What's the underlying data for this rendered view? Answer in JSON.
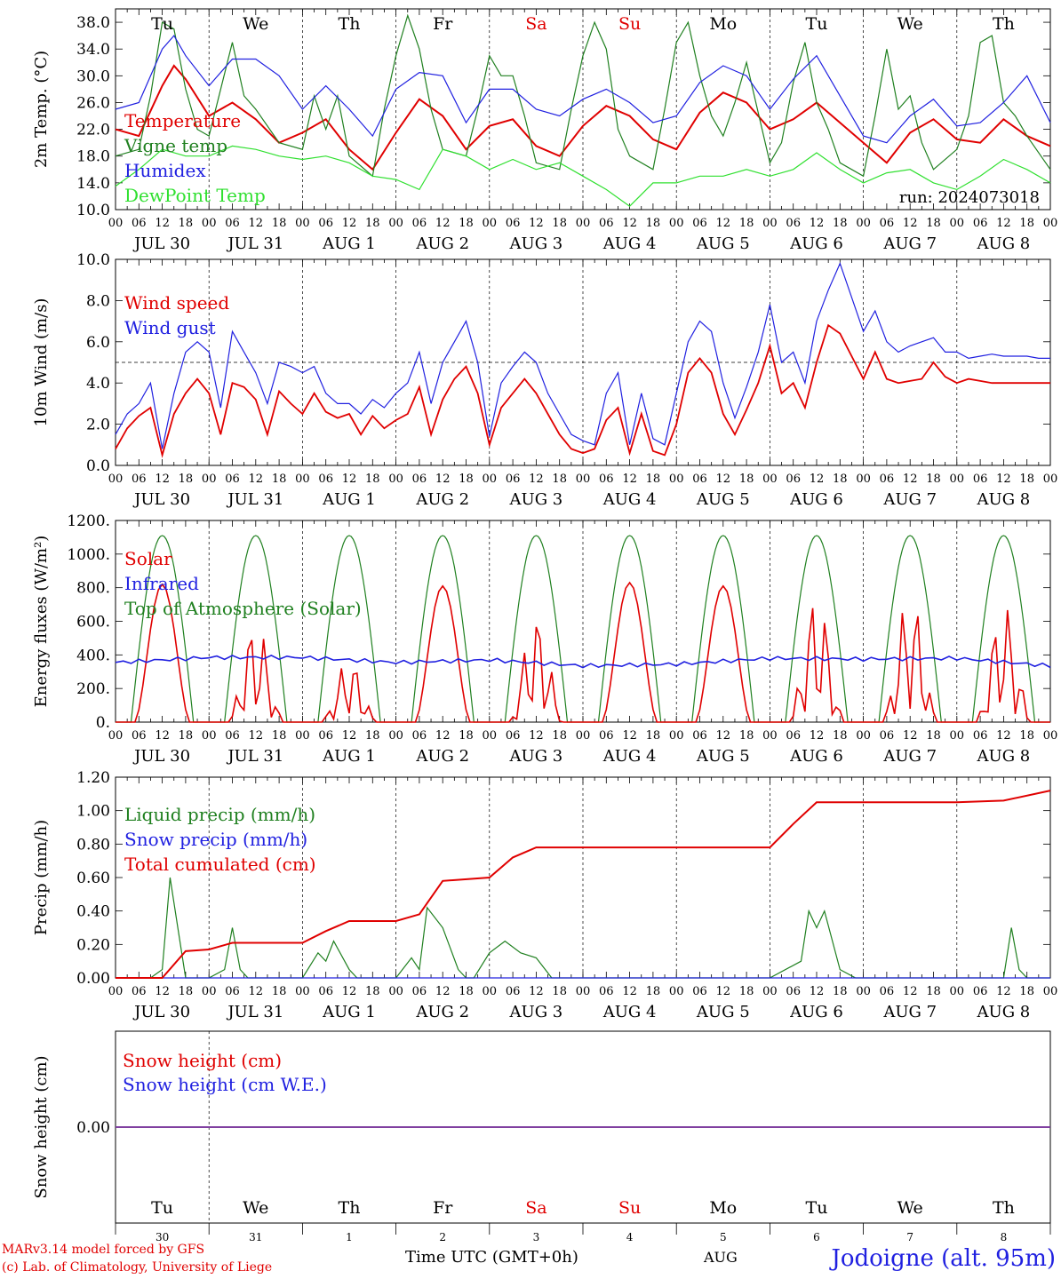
{
  "chart_data": [
    {
      "type": "line",
      "ylabel": "2m Temp. (°C)",
      "ylim": [
        10,
        40
      ],
      "yticks": [
        "10.0",
        "14.0",
        "18.0",
        "22.0",
        "26.0",
        "30.0",
        "34.0",
        "38.0"
      ],
      "run_label": "run: 2024073018",
      "series": [
        {
          "name": "Temperature",
          "color": "#e00000",
          "x": [
            0,
            6,
            12,
            15,
            18,
            24,
            30,
            36,
            42,
            48,
            54,
            60,
            66,
            72,
            78,
            84,
            90,
            96,
            102,
            108,
            114,
            120,
            126,
            132,
            138,
            144,
            150,
            156,
            162,
            168,
            174,
            180,
            186,
            192,
            198,
            204,
            210,
            216,
            222,
            228,
            234,
            240
          ],
          "values": [
            22,
            21,
            28.5,
            31.5,
            29.5,
            24,
            26,
            23.5,
            20,
            21.5,
            23.5,
            19,
            16,
            21.5,
            26.5,
            24,
            19,
            22.5,
            23.5,
            19.5,
            18,
            22.5,
            25.5,
            24,
            20.5,
            19,
            24.5,
            27.5,
            26,
            22,
            23.5,
            26,
            23,
            20,
            17,
            21.5,
            23.5,
            20.5,
            20,
            23.5,
            21,
            19.5
          ]
        },
        {
          "name": "Vigne temp",
          "color": "#208020",
          "x": [
            0,
            6,
            9,
            12,
            15,
            18,
            21,
            24,
            30,
            33,
            36,
            42,
            48,
            51,
            54,
            57,
            60,
            66,
            69,
            72,
            75,
            78,
            81,
            84,
            90,
            93,
            96,
            99,
            102,
            105,
            108,
            114,
            117,
            120,
            123,
            126,
            129,
            132,
            138,
            141,
            144,
            147,
            150,
            153,
            156,
            159,
            162,
            168,
            171,
            174,
            177,
            180,
            183,
            186,
            192,
            195,
            198,
            201,
            204,
            207,
            210,
            216,
            219,
            222,
            225,
            228,
            231,
            234,
            240
          ],
          "values": [
            18,
            19,
            27,
            38,
            37,
            28,
            22,
            21,
            35,
            27,
            25,
            20,
            19,
            27,
            22,
            27,
            18,
            15,
            25,
            33,
            39,
            34,
            25,
            19,
            18,
            25,
            33,
            30,
            30,
            24,
            17,
            16,
            25,
            33,
            38,
            34,
            22,
            18,
            16,
            25,
            35,
            38,
            30,
            24,
            21,
            26,
            32,
            17,
            20,
            29,
            35,
            26,
            22,
            17,
            15,
            24,
            34,
            25,
            27,
            20,
            16,
            19,
            24,
            35,
            36,
            26,
            24,
            21,
            16
          ]
        },
        {
          "name": "Humidex",
          "color": "#2020e0",
          "x": [
            0,
            6,
            12,
            15,
            18,
            24,
            30,
            36,
            42,
            48,
            54,
            60,
            66,
            72,
            78,
            84,
            90,
            96,
            102,
            108,
            114,
            120,
            126,
            132,
            138,
            144,
            150,
            156,
            162,
            168,
            174,
            180,
            186,
            192,
            198,
            204,
            210,
            216,
            222,
            228,
            234,
            240
          ],
          "values": [
            25,
            26,
            34,
            36,
            33,
            28.5,
            32.5,
            32.5,
            30,
            25,
            28.5,
            25,
            21,
            28,
            30.5,
            30,
            23,
            28,
            28,
            25,
            24,
            26.5,
            28,
            26,
            23,
            24,
            29,
            31.5,
            30,
            25,
            29.5,
            33,
            27,
            21,
            20,
            24,
            26.5,
            22.5,
            23,
            26,
            30,
            23
          ]
        },
        {
          "name": "DewPoint Temp",
          "color": "#30e030",
          "x": [
            0,
            6,
            12,
            18,
            24,
            30,
            36,
            42,
            48,
            54,
            60,
            66,
            72,
            78,
            84,
            90,
            96,
            102,
            108,
            114,
            120,
            126,
            132,
            138,
            144,
            150,
            156,
            162,
            168,
            174,
            180,
            186,
            192,
            198,
            204,
            210,
            216,
            222,
            228,
            234,
            240
          ],
          "values": [
            13.5,
            16,
            19,
            18,
            18,
            19.5,
            19,
            18,
            17.5,
            18,
            17,
            15,
            14.5,
            13,
            19,
            18,
            16,
            17.5,
            16,
            17,
            15,
            13,
            10.5,
            14,
            14,
            15,
            15,
            16,
            15,
            16,
            18.5,
            16,
            14,
            15.5,
            16,
            14,
            13,
            15,
            17.5,
            16,
            14
          ]
        }
      ]
    },
    {
      "type": "line",
      "ylabel": "10m Wind (m/s)",
      "ylim": [
        0,
        10
      ],
      "yticks": [
        "0.0",
        "2.0",
        "4.0",
        "6.0",
        "8.0",
        "10.0"
      ],
      "reference_line": 5,
      "series": [
        {
          "name": "Wind speed",
          "color": "#e00000",
          "x": [
            0,
            3,
            6,
            9,
            12,
            15,
            18,
            21,
            24,
            27,
            30,
            33,
            36,
            39,
            42,
            45,
            48,
            51,
            54,
            57,
            60,
            63,
            66,
            69,
            72,
            75,
            78,
            81,
            84,
            87,
            90,
            93,
            96,
            99,
            102,
            105,
            108,
            111,
            114,
            117,
            120,
            123,
            126,
            129,
            132,
            135,
            138,
            141,
            144,
            147,
            150,
            153,
            156,
            159,
            162,
            165,
            168,
            171,
            174,
            177,
            180,
            183,
            186,
            192,
            195,
            198,
            201,
            204,
            207,
            210,
            213,
            216,
            219,
            222,
            225,
            228,
            231,
            234,
            237,
            240
          ],
          "values": [
            0.8,
            1.8,
            2.4,
            2.8,
            0.5,
            2.5,
            3.5,
            4.2,
            3.5,
            1.5,
            4,
            3.8,
            3.2,
            1.5,
            3.6,
            3,
            2.5,
            3.5,
            2.6,
            2.3,
            2.5,
            1.5,
            2.4,
            1.8,
            2.2,
            2.5,
            3.8,
            1.5,
            3.2,
            4.2,
            4.8,
            3.5,
            1,
            2.8,
            3.5,
            4.2,
            3.5,
            2.5,
            1.5,
            0.8,
            0.6,
            0.8,
            2.2,
            2.8,
            0.6,
            2.5,
            0.7,
            0.5,
            2,
            4.5,
            5.2,
            4.5,
            2.5,
            1.5,
            2.7,
            4,
            5.8,
            3.5,
            4,
            2.8,
            5,
            6.8,
            6.4,
            4.2,
            5.5,
            4.2,
            4,
            4.1,
            4.2,
            5,
            4.3,
            4,
            4.2,
            4.1,
            4,
            4,
            4,
            4,
            4,
            4
          ]
        },
        {
          "name": "Wind gust",
          "color": "#2020e0",
          "x": [
            0,
            3,
            6,
            9,
            12,
            15,
            18,
            21,
            24,
            27,
            30,
            33,
            36,
            39,
            42,
            45,
            48,
            51,
            54,
            57,
            60,
            63,
            66,
            69,
            72,
            75,
            78,
            81,
            84,
            87,
            90,
            93,
            96,
            99,
            102,
            105,
            108,
            111,
            114,
            117,
            120,
            123,
            126,
            129,
            132,
            135,
            138,
            141,
            144,
            147,
            150,
            153,
            156,
            159,
            162,
            165,
            168,
            171,
            174,
            177,
            180,
            183,
            186,
            192,
            195,
            198,
            201,
            204,
            207,
            210,
            213,
            216,
            219,
            222,
            225,
            228,
            231,
            234,
            237,
            240
          ],
          "values": [
            1.5,
            2.5,
            3,
            4,
            0.8,
            3.5,
            5.5,
            6,
            5.5,
            2.8,
            6.5,
            5.5,
            4.5,
            3,
            5,
            4.8,
            4.5,
            4.8,
            3.5,
            3,
            3,
            2.5,
            3.2,
            2.8,
            3.5,
            4,
            5.5,
            3,
            5,
            6,
            7,
            5,
            1.4,
            4,
            4.8,
            5.5,
            5,
            3.5,
            2.5,
            1.5,
            1.2,
            1,
            3.5,
            4.5,
            1,
            3.5,
            1.3,
            1,
            3.5,
            6,
            7,
            6.5,
            4,
            2.3,
            3.8,
            5.5,
            7.8,
            5,
            5.5,
            4,
            7,
            8.5,
            9.8,
            6.5,
            7.5,
            6,
            5.5,
            5.8,
            6,
            6.2,
            5.5,
            5.5,
            5.2,
            5.3,
            5.4,
            5.3,
            5.3,
            5.3,
            5.2,
            5.2
          ]
        }
      ]
    },
    {
      "type": "line",
      "ylabel": "Energy fluxes (W/m²)",
      "ylim": [
        0,
        1200
      ],
      "yticks": [
        "0.",
        "200.",
        "400.",
        "600.",
        "800.",
        "1000.",
        "1200."
      ],
      "series": [
        {
          "name": "Solar",
          "color": "#e00000",
          "peaks": [
            820,
            600,
            380,
            810,
            640,
            830,
            810,
            760,
            770,
            710
          ],
          "peak_hour": 13
        },
        {
          "name": "Infrared",
          "color": "#2020e0",
          "x": [
            0,
            24,
            48,
            72,
            96,
            120,
            144,
            168,
            192,
            216,
            240
          ],
          "values": [
            355,
            385,
            385,
            355,
            370,
            335,
            345,
            380,
            375,
            380,
            335
          ]
        },
        {
          "name": "Top of Atmosphere (Solar)",
          "color": "#208020",
          "peak": 1110,
          "sunrise": 4,
          "sunset": 20
        }
      ]
    },
    {
      "type": "line",
      "ylabel": "Precip (mm/h)",
      "ylim": [
        0,
        1.2
      ],
      "yticks": [
        "0.00",
        "0.20",
        "0.40",
        "0.60",
        "0.80",
        "1.00",
        "1.20"
      ],
      "series": [
        {
          "name": "Liquid precip (mm/h)",
          "color": "#208020",
          "x": [
            0,
            9,
            12,
            14,
            16,
            18,
            24,
            28,
            30,
            32,
            34,
            48,
            52,
            54,
            56,
            60,
            62,
            72,
            76,
            78,
            80,
            84,
            88,
            90,
            92,
            96,
            100,
            104,
            108,
            112,
            120,
            168,
            176,
            178,
            180,
            182,
            186,
            190,
            228,
            230,
            232,
            234,
            240
          ],
          "values": [
            0,
            0,
            0.05,
            0.6,
            0.3,
            0,
            0,
            0.05,
            0.3,
            0.05,
            0,
            0,
            0.15,
            0.1,
            0.22,
            0.05,
            0,
            0,
            0.12,
            0.05,
            0.42,
            0.3,
            0.05,
            0,
            0,
            0.15,
            0.22,
            0.15,
            0.12,
            0,
            0,
            0,
            0.1,
            0.4,
            0.3,
            0.4,
            0.05,
            0,
            0,
            0.3,
            0.05,
            0,
            0
          ]
        },
        {
          "name": "Snow precip (mm/h)",
          "color": "#2020e0",
          "x": [
            0,
            240
          ],
          "values": [
            0,
            0
          ]
        },
        {
          "name": "Total cumulated (cm)",
          "color": "#e00000",
          "x": [
            0,
            12,
            18,
            24,
            30,
            48,
            54,
            60,
            72,
            78,
            84,
            96,
            102,
            108,
            168,
            174,
            180,
            216,
            228,
            240
          ],
          "values": [
            0,
            0,
            0.16,
            0.17,
            0.21,
            0.21,
            0.28,
            0.34,
            0.34,
            0.38,
            0.58,
            0.6,
            0.72,
            0.78,
            0.78,
            0.92,
            1.05,
            1.05,
            1.06,
            1.12
          ]
        }
      ]
    },
    {
      "type": "line",
      "ylabel": "Snow height (cm)",
      "ylim": [
        -1,
        1
      ],
      "yticks": [
        "0.00"
      ],
      "series": [
        {
          "name": "Snow height (cm)",
          "color": "#e00000",
          "x": [
            0,
            240
          ],
          "values": [
            0,
            0
          ]
        },
        {
          "name": "Snow height (cm W.E.)",
          "color": "#2020e0",
          "x": [
            0,
            240
          ],
          "values": [
            0,
            0
          ]
        }
      ]
    }
  ],
  "hour_ticks": [
    "00",
    "06",
    "12",
    "18"
  ],
  "dates": [
    "JUL 30",
    "JUL 31",
    "AUG  1",
    "AUG  2",
    "AUG  3",
    "AUG  4",
    "AUG  5",
    "AUG  6",
    "AUG  7",
    "AUG  8"
  ],
  "weekdays": [
    {
      "label": "Tu",
      "color": "#000000"
    },
    {
      "label": "We",
      "color": "#000000"
    },
    {
      "label": "Th",
      "color": "#000000"
    },
    {
      "label": "Fr",
      "color": "#000000"
    },
    {
      "label": "Sa",
      "color": "#e00000"
    },
    {
      "label": "Su",
      "color": "#e00000"
    },
    {
      "label": "Mo",
      "color": "#000000"
    },
    {
      "label": "Tu",
      "color": "#000000"
    },
    {
      "label": "We",
      "color": "#000000"
    },
    {
      "label": "Th",
      "color": "#000000"
    }
  ],
  "day_numbers": [
    "30",
    "31",
    "1",
    "2",
    "3",
    "4",
    "5",
    "6",
    "7",
    "8"
  ],
  "month_label": "AUG",
  "xlabel": "Time UTC (GMT+0h)",
  "credits": [
    "MARv3.14 model forced by GFS",
    "(c) Lab. of Climatology, University of Liege"
  ],
  "location": "Jodoigne (alt. 95m)"
}
